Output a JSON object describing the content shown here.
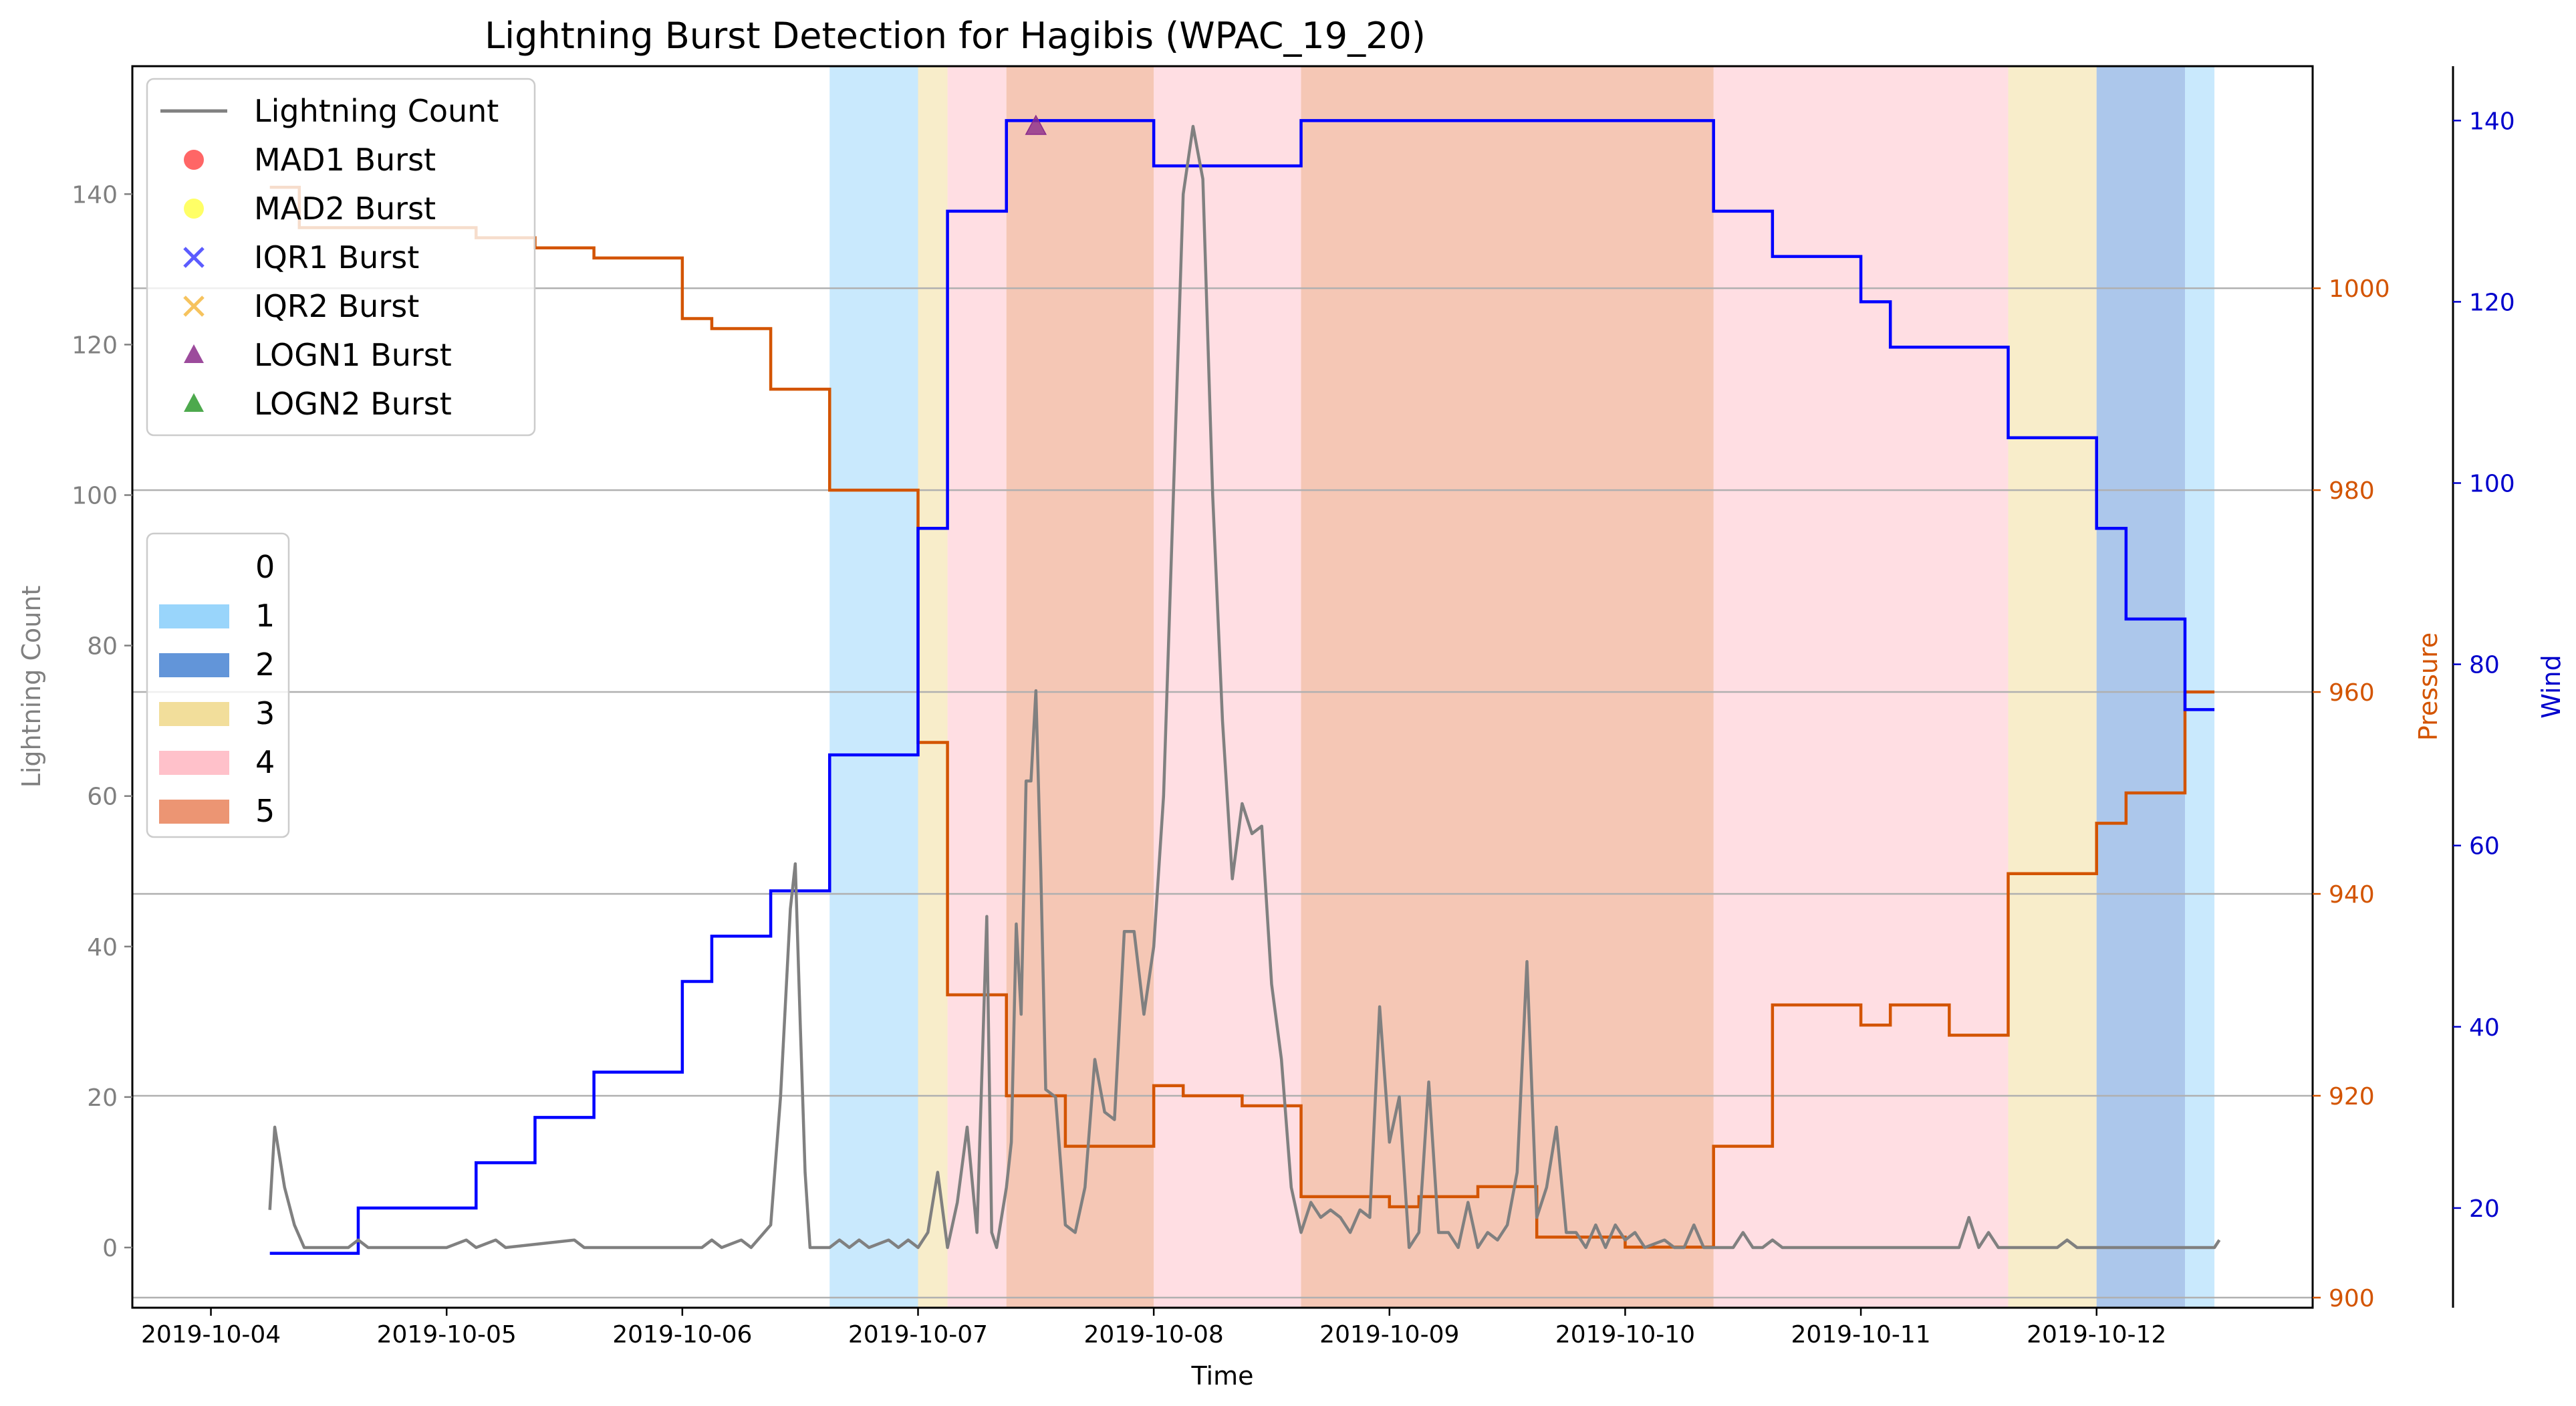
{
  "chart_data": {
    "type": "line",
    "title": "Lightning Burst Detection for Hagibis (WPAC_19_20)",
    "xlabel": "Time",
    "ylabel_left": "Lightning Count",
    "ylabel_pressure": "Pressure",
    "ylabel_wind": "Wind",
    "x_ticks": [
      "2019-10-04",
      "2019-10-05",
      "2019-10-06",
      "2019-10-07",
      "2019-10-08",
      "2019-10-09",
      "2019-10-10",
      "2019-10-11",
      "2019-10-12"
    ],
    "xlim": [
      "2019-10-03T16:00",
      "2019-10-12T22:00"
    ],
    "y_left": {
      "lim": [
        -8,
        157
      ],
      "ticks": [
        "0",
        "20",
        "40",
        "60",
        "80",
        "100",
        "120",
        "140"
      ]
    },
    "y_pressure": {
      "lim": [
        899,
        1022
      ],
      "ticks": [
        "900",
        "920",
        "940",
        "960",
        "980",
        "1000"
      ]
    },
    "y_wind": {
      "lim": [
        9,
        146
      ],
      "ticks": [
        "20",
        "40",
        "60",
        "80",
        "100",
        "120",
        "140"
      ]
    },
    "grid": "horizontal lines at pressure ticks",
    "colors": {
      "lightning": "#808080",
      "pressure": "#d35400",
      "wind": "#0000ff",
      "cat1": "#87cefa",
      "cat2": "#4682d2",
      "cat3": "#f0d88a",
      "cat4": "#ffb6c1",
      "cat5": "#e9825a",
      "mad1": "#ff4040",
      "mad2": "#ffff40",
      "iqr1": "#4040ff",
      "iqr2": "#f4b942",
      "logn1": "#8b2b8b",
      "logn2": "#2e9a2e"
    },
    "legend_series": {
      "placement": "upper-left",
      "entries": [
        {
          "label": "Lightning Count",
          "marker": "line",
          "color": "#808080"
        },
        {
          "label": "MAD1 Burst",
          "marker": "circle",
          "color": "#ff4040"
        },
        {
          "label": "MAD2 Burst",
          "marker": "circle",
          "color": "#ffff40"
        },
        {
          "label": "IQR1 Burst",
          "marker": "x",
          "color": "#4040ff"
        },
        {
          "label": "IQR2 Burst",
          "marker": "x",
          "color": "#f4b942"
        },
        {
          "label": "LOGN1 Burst",
          "marker": "triangle",
          "color": "#8b2b8b"
        },
        {
          "label": "LOGN2 Burst",
          "marker": "triangle",
          "color": "#2e9a2e"
        }
      ]
    },
    "legend_category": {
      "placement": "center-left",
      "entries": [
        {
          "label": "0",
          "color": "none"
        },
        {
          "label": "1",
          "color": "#87cefa"
        },
        {
          "label": "2",
          "color": "#4682d2"
        },
        {
          "label": "3",
          "color": "#f0d88a"
        },
        {
          "label": "4",
          "color": "#ffb6c1"
        },
        {
          "label": "5",
          "color": "#e9825a"
        }
      ]
    },
    "category_bands": [
      {
        "category": 1,
        "start": "2019-10-06T15:00",
        "end": "2019-10-07T00:00"
      },
      {
        "category": 3,
        "start": "2019-10-07T00:00",
        "end": "2019-10-07T03:00"
      },
      {
        "category": 4,
        "start": "2019-10-07T03:00",
        "end": "2019-10-07T09:00"
      },
      {
        "category": 5,
        "start": "2019-10-07T09:00",
        "end": "2019-10-08T00:00"
      },
      {
        "category": 4,
        "start": "2019-10-08T00:00",
        "end": "2019-10-08T15:00"
      },
      {
        "category": 5,
        "start": "2019-10-08T15:00",
        "end": "2019-10-10T09:00"
      },
      {
        "category": 4,
        "start": "2019-10-10T09:00",
        "end": "2019-10-11T15:00"
      },
      {
        "category": 3,
        "start": "2019-10-11T15:00",
        "end": "2019-10-12T00:00"
      },
      {
        "category": 2,
        "start": "2019-10-12T00:00",
        "end": "2019-10-12T09:00"
      },
      {
        "category": 1,
        "start": "2019-10-12T09:00",
        "end": "2019-10-12T12:00"
      }
    ],
    "wind": [
      [
        "2019-10-04T06:00",
        15
      ],
      [
        "2019-10-04T15:00",
        20
      ],
      [
        "2019-10-05T03:00",
        25
      ],
      [
        "2019-10-05T09:00",
        30
      ],
      [
        "2019-10-05T15:00",
        35
      ],
      [
        "2019-10-06T00:00",
        45
      ],
      [
        "2019-10-06T03:00",
        50
      ],
      [
        "2019-10-06T09:00",
        55
      ],
      [
        "2019-10-06T15:00",
        70
      ],
      [
        "2019-10-07T00:00",
        95
      ],
      [
        "2019-10-07T03:00",
        130
      ],
      [
        "2019-10-07T09:00",
        140
      ],
      [
        "2019-10-08T00:00",
        135
      ],
      [
        "2019-10-08T15:00",
        140
      ],
      [
        "2019-10-10T09:00",
        130
      ],
      [
        "2019-10-10T15:00",
        125
      ],
      [
        "2019-10-11T00:00",
        120
      ],
      [
        "2019-10-11T03:00",
        115
      ],
      [
        "2019-10-11T15:00",
        105
      ],
      [
        "2019-10-12T00:00",
        95
      ],
      [
        "2019-10-12T03:00",
        85
      ],
      [
        "2019-10-12T09:00",
        75
      ],
      [
        "2019-10-12T12:00",
        75
      ]
    ],
    "pressure": [
      [
        "2019-10-04T06:00",
        1010
      ],
      [
        "2019-10-04T09:00",
        1006
      ],
      [
        "2019-10-05T03:00",
        1005
      ],
      [
        "2019-10-05T09:00",
        1004
      ],
      [
        "2019-10-05T15:00",
        1003
      ],
      [
        "2019-10-06T00:00",
        997
      ],
      [
        "2019-10-06T03:00",
        996
      ],
      [
        "2019-10-06T09:00",
        990
      ],
      [
        "2019-10-06T15:00",
        980
      ],
      [
        "2019-10-07T00:00",
        955
      ],
      [
        "2019-10-07T03:00",
        930
      ],
      [
        "2019-10-07T09:00",
        920
      ],
      [
        "2019-10-07T15:00",
        915
      ],
      [
        "2019-10-08T00:00",
        921
      ],
      [
        "2019-10-08T03:00",
        920
      ],
      [
        "2019-10-08T09:00",
        919
      ],
      [
        "2019-10-08T15:00",
        910
      ],
      [
        "2019-10-09T00:00",
        909
      ],
      [
        "2019-10-09T03:00",
        910
      ],
      [
        "2019-10-09T09:00",
        911
      ],
      [
        "2019-10-09T15:00",
        906
      ],
      [
        "2019-10-10T00:00",
        905
      ],
      [
        "2019-10-10T09:00",
        915
      ],
      [
        "2019-10-10T15:00",
        929
      ],
      [
        "2019-10-11T00:00",
        927
      ],
      [
        "2019-10-11T03:00",
        929
      ],
      [
        "2019-10-11T09:00",
        926
      ],
      [
        "2019-10-11T15:00",
        942
      ],
      [
        "2019-10-12T00:00",
        947
      ],
      [
        "2019-10-12T03:00",
        950
      ],
      [
        "2019-10-12T09:00",
        960
      ],
      [
        "2019-10-12T12:00",
        960
      ]
    ],
    "lightning": [
      [
        "2019-10-04T06:00",
        5
      ],
      [
        "2019-10-04T06:30",
        16
      ],
      [
        "2019-10-04T07:30",
        8
      ],
      [
        "2019-10-04T08:30",
        3
      ],
      [
        "2019-10-04T09:30",
        0
      ],
      [
        "2019-10-04T14:00",
        0
      ],
      [
        "2019-10-04T15:00",
        1
      ],
      [
        "2019-10-04T16:00",
        0
      ],
      [
        "2019-10-05T00:00",
        0
      ],
      [
        "2019-10-05T02:00",
        1
      ],
      [
        "2019-10-05T03:00",
        0
      ],
      [
        "2019-10-05T05:00",
        1
      ],
      [
        "2019-10-05T06:00",
        0
      ],
      [
        "2019-10-05T13:00",
        1
      ],
      [
        "2019-10-05T14:00",
        0
      ],
      [
        "2019-10-06T02:00",
        0
      ],
      [
        "2019-10-06T03:00",
        1
      ],
      [
        "2019-10-06T04:00",
        0
      ],
      [
        "2019-10-06T06:00",
        1
      ],
      [
        "2019-10-06T07:00",
        0
      ],
      [
        "2019-10-06T09:00",
        3
      ],
      [
        "2019-10-06T10:00",
        20
      ],
      [
        "2019-10-06T11:00",
        45
      ],
      [
        "2019-10-06T11:30",
        51
      ],
      [
        "2019-10-06T12:00",
        30
      ],
      [
        "2019-10-06T12:30",
        10
      ],
      [
        "2019-10-06T13:00",
        0
      ],
      [
        "2019-10-06T15:00",
        0
      ],
      [
        "2019-10-06T16:00",
        1
      ],
      [
        "2019-10-06T17:00",
        0
      ],
      [
        "2019-10-06T18:00",
        1
      ],
      [
        "2019-10-06T19:00",
        0
      ],
      [
        "2019-10-06T21:00",
        1
      ],
      [
        "2019-10-06T22:00",
        0
      ],
      [
        "2019-10-06T23:00",
        1
      ],
      [
        "2019-10-07T00:00",
        0
      ],
      [
        "2019-10-07T01:00",
        2
      ],
      [
        "2019-10-07T02:00",
        10
      ],
      [
        "2019-10-07T03:00",
        0
      ],
      [
        "2019-10-07T04:00",
        6
      ],
      [
        "2019-10-07T05:00",
        16
      ],
      [
        "2019-10-07T06:00",
        2
      ],
      [
        "2019-10-07T07:00",
        44
      ],
      [
        "2019-10-07T07:30",
        2
      ],
      [
        "2019-10-07T08:00",
        0
      ],
      [
        "2019-10-07T09:00",
        8
      ],
      [
        "2019-10-07T09:30",
        14
      ],
      [
        "2019-10-07T10:00",
        43
      ],
      [
        "2019-10-07T10:30",
        31
      ],
      [
        "2019-10-07T11:00",
        62
      ],
      [
        "2019-10-07T11:30",
        62
      ],
      [
        "2019-10-07T12:00",
        74
      ],
      [
        "2019-10-07T12:30",
        50
      ],
      [
        "2019-10-07T13:00",
        21
      ],
      [
        "2019-10-07T14:00",
        20
      ],
      [
        "2019-10-07T15:00",
        3
      ],
      [
        "2019-10-07T16:00",
        2
      ],
      [
        "2019-10-07T17:00",
        8
      ],
      [
        "2019-10-07T18:00",
        25
      ],
      [
        "2019-10-07T19:00",
        18
      ],
      [
        "2019-10-07T20:00",
        17
      ],
      [
        "2019-10-07T21:00",
        42
      ],
      [
        "2019-10-07T22:00",
        42
      ],
      [
        "2019-10-07T23:00",
        31
      ],
      [
        "2019-10-08T00:00",
        40
      ],
      [
        "2019-10-08T01:00",
        60
      ],
      [
        "2019-10-08T02:00",
        100
      ],
      [
        "2019-10-08T03:00",
        140
      ],
      [
        "2019-10-08T04:00",
        149
      ],
      [
        "2019-10-08T05:00",
        142
      ],
      [
        "2019-10-08T06:00",
        100
      ],
      [
        "2019-10-08T07:00",
        70
      ],
      [
        "2019-10-08T08:00",
        49
      ],
      [
        "2019-10-08T09:00",
        59
      ],
      [
        "2019-10-08T10:00",
        55
      ],
      [
        "2019-10-08T11:00",
        56
      ],
      [
        "2019-10-08T12:00",
        35
      ],
      [
        "2019-10-08T13:00",
        25
      ],
      [
        "2019-10-08T14:00",
        8
      ],
      [
        "2019-10-08T15:00",
        2
      ],
      [
        "2019-10-08T16:00",
        6
      ],
      [
        "2019-10-08T17:00",
        4
      ],
      [
        "2019-10-08T18:00",
        5
      ],
      [
        "2019-10-08T19:00",
        4
      ],
      [
        "2019-10-08T20:00",
        2
      ],
      [
        "2019-10-08T21:00",
        5
      ],
      [
        "2019-10-08T22:00",
        4
      ],
      [
        "2019-10-08T23:00",
        32
      ],
      [
        "2019-10-09T00:00",
        14
      ],
      [
        "2019-10-09T01:00",
        20
      ],
      [
        "2019-10-09T02:00",
        0
      ],
      [
        "2019-10-09T03:00",
        2
      ],
      [
        "2019-10-09T04:00",
        22
      ],
      [
        "2019-10-09T05:00",
        2
      ],
      [
        "2019-10-09T06:00",
        2
      ],
      [
        "2019-10-09T07:00",
        0
      ],
      [
        "2019-10-09T08:00",
        6
      ],
      [
        "2019-10-09T09:00",
        0
      ],
      [
        "2019-10-09T10:00",
        2
      ],
      [
        "2019-10-09T11:00",
        1
      ],
      [
        "2019-10-09T12:00",
        3
      ],
      [
        "2019-10-09T13:00",
        10
      ],
      [
        "2019-10-09T14:00",
        38
      ],
      [
        "2019-10-09T15:00",
        4
      ],
      [
        "2019-10-09T16:00",
        8
      ],
      [
        "2019-10-09T17:00",
        16
      ],
      [
        "2019-10-09T18:00",
        2
      ],
      [
        "2019-10-09T19:00",
        2
      ],
      [
        "2019-10-09T20:00",
        0
      ],
      [
        "2019-10-09T21:00",
        3
      ],
      [
        "2019-10-09T22:00",
        0
      ],
      [
        "2019-10-09T23:00",
        3
      ],
      [
        "2019-10-10T00:00",
        1
      ],
      [
        "2019-10-10T01:00",
        2
      ],
      [
        "2019-10-10T02:00",
        0
      ],
      [
        "2019-10-10T04:00",
        1
      ],
      [
        "2019-10-10T05:00",
        0
      ],
      [
        "2019-10-10T06:00",
        0
      ],
      [
        "2019-10-10T07:00",
        3
      ],
      [
        "2019-10-10T08:00",
        0
      ],
      [
        "2019-10-10T09:00",
        0
      ],
      [
        "2019-10-10T10:00",
        0
      ],
      [
        "2019-10-10T11:00",
        0
      ],
      [
        "2019-10-10T12:00",
        2
      ],
      [
        "2019-10-10T13:00",
        0
      ],
      [
        "2019-10-10T14:00",
        0
      ],
      [
        "2019-10-10T15:00",
        1
      ],
      [
        "2019-10-10T16:00",
        0
      ],
      [
        "2019-10-11T10:00",
        0
      ],
      [
        "2019-10-11T11:00",
        4
      ],
      [
        "2019-10-11T12:00",
        0
      ],
      [
        "2019-10-11T13:00",
        2
      ],
      [
        "2019-10-11T14:00",
        0
      ],
      [
        "2019-10-11T20:00",
        0
      ],
      [
        "2019-10-11T21:00",
        1
      ],
      [
        "2019-10-11T22:00",
        0
      ],
      [
        "2019-10-12T12:00",
        0
      ],
      [
        "2019-10-12T12:30",
        1
      ]
    ],
    "bursts": [
      {
        "method": "LOGN1",
        "x": "2019-10-07T12:00",
        "y": 149
      }
    ]
  }
}
